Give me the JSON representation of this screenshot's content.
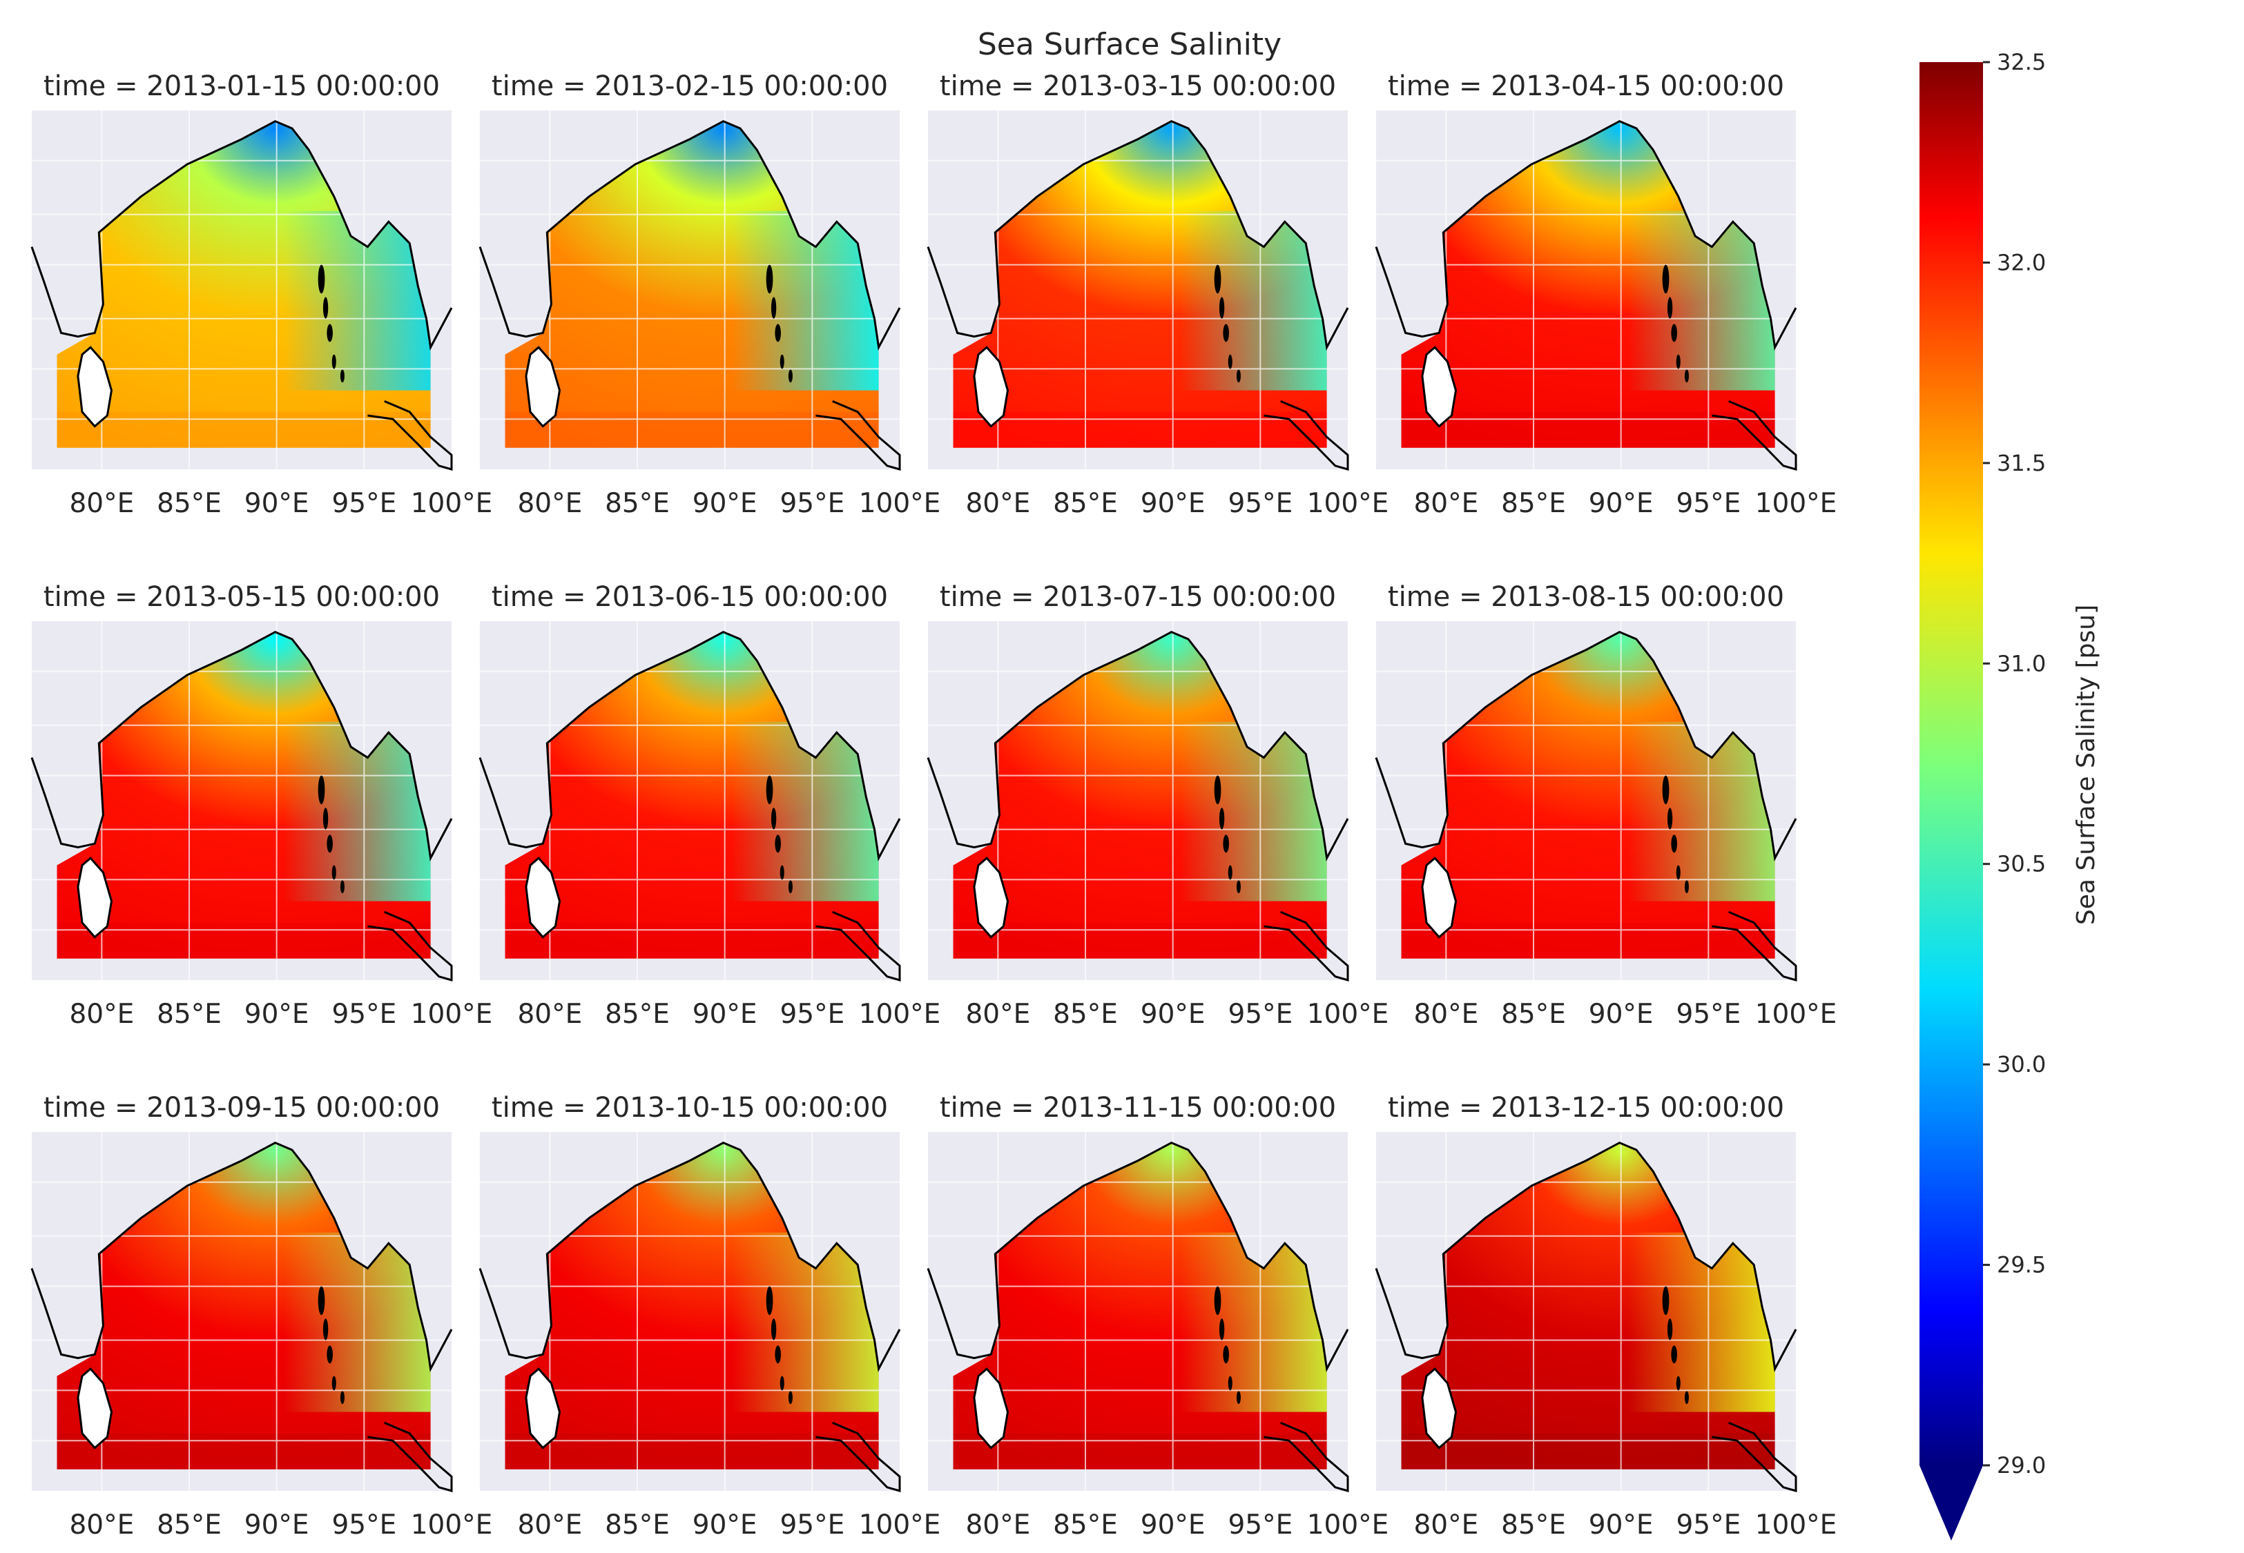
{
  "title": "Sea Surface Salinity",
  "panel_titles": [
    "time = 2013-01-15 00:00:00",
    "time = 2013-02-15 00:00:00",
    "time = 2013-03-15 00:00:00",
    "time = 2013-04-15 00:00:00",
    "time = 2013-05-15 00:00:00",
    "time = 2013-06-15 00:00:00",
    "time = 2013-07-15 00:00:00",
    "time = 2013-08-15 00:00:00",
    "time = 2013-09-15 00:00:00",
    "time = 2013-10-15 00:00:00",
    "time = 2013-11-15 00:00:00",
    "time = 2013-12-15 00:00:00"
  ],
  "x_tick_labels": [
    "80°E",
    "85°E",
    "90°E",
    "95°E",
    "100°E"
  ],
  "colorbar": {
    "label": "Sea Surface Salinity [psu]",
    "ticks": [
      "29.0",
      "29.5",
      "30.0",
      "30.5",
      "31.0",
      "31.5",
      "32.0",
      "32.5"
    ],
    "extend": "min",
    "colormap": "jet"
  },
  "colors": {
    "panel_background": "#eaeaf2",
    "grid": "#ffffff",
    "coastline": "#000000"
  },
  "chart_data": {
    "type": "heatmap",
    "title": "Sea Surface Salinity",
    "layout": "3 rows x 4 columns of map panels",
    "region": "Bay of Bengal",
    "x_axis": {
      "ticks": [
        80,
        85,
        90,
        95,
        100
      ],
      "unit": "°E",
      "range": [
        76,
        100
      ]
    },
    "value_range": [
      29.0,
      32.5
    ],
    "value_unit": "psu",
    "months": [
      {
        "time": "2013-01-15",
        "open_ocean": 31.4,
        "north_coast": 29.9,
        "eastern_gulf": 30.2
      },
      {
        "time": "2013-02-15",
        "open_ocean": 31.6,
        "north_coast": 29.9,
        "eastern_gulf": 30.3
      },
      {
        "time": "2013-03-15",
        "open_ocean": 31.9,
        "north_coast": 30.0,
        "eastern_gulf": 30.5
      },
      {
        "time": "2013-04-15",
        "open_ocean": 32.0,
        "north_coast": 30.1,
        "eastern_gulf": 30.6
      },
      {
        "time": "2013-05-15",
        "open_ocean": 32.0,
        "north_coast": 30.3,
        "eastern_gulf": 30.5
      },
      {
        "time": "2013-06-15",
        "open_ocean": 32.0,
        "north_coast": 30.4,
        "eastern_gulf": 30.6
      },
      {
        "time": "2013-07-15",
        "open_ocean": 32.0,
        "north_coast": 30.5,
        "eastern_gulf": 30.7
      },
      {
        "time": "2013-08-15",
        "open_ocean": 32.0,
        "north_coast": 30.6,
        "eastern_gulf": 30.8
      },
      {
        "time": "2013-09-15",
        "open_ocean": 32.1,
        "north_coast": 30.7,
        "eastern_gulf": 30.9
      },
      {
        "time": "2013-10-15",
        "open_ocean": 32.1,
        "north_coast": 30.8,
        "eastern_gulf": 31.0
      },
      {
        "time": "2013-11-15",
        "open_ocean": 32.1,
        "north_coast": 30.9,
        "eastern_gulf": 31.0
      },
      {
        "time": "2013-12-15",
        "open_ocean": 32.2,
        "north_coast": 31.0,
        "eastern_gulf": 31.1
      }
    ]
  }
}
